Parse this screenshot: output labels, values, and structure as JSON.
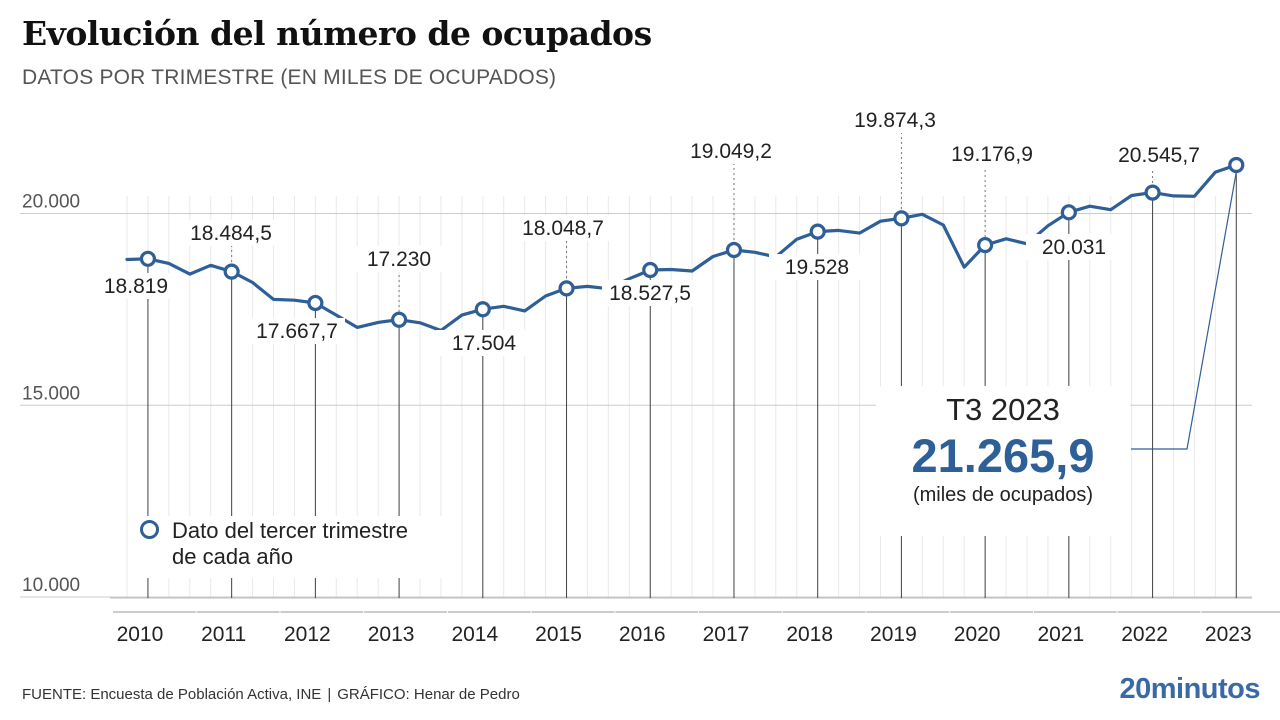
{
  "header": {
    "title": "Evolución del número de ocupados",
    "subtitle": "DATOS POR TRIMESTRE (EN MILES DE OCUPADOS)"
  },
  "legend": {
    "line1": "Dato del tercer trimestre",
    "line2": "de cada año"
  },
  "callout": {
    "label": "T3 2023",
    "value": "21.265,9",
    "unit": "(miles de ocupados)"
  },
  "footer": {
    "source": "FUENTE: Encuesta de Población Activa, INE",
    "separator": "|",
    "credit": "GRÁFICO: Henar de Pedro"
  },
  "brand": {
    "logo": "20minutos"
  },
  "colors": {
    "line": "#2f5f97",
    "grid": "#cccccc",
    "text": "#222222"
  },
  "chart_data": {
    "type": "line",
    "title": "Evolución del número de ocupados",
    "subtitle": "DATOS POR TRIMESTRE (EN MILES DE OCUPADOS)",
    "ylim": [
      10000,
      21500
    ],
    "yticks": [
      10000,
      15000,
      20000
    ],
    "ytick_labels": [
      "10.000",
      "15.000",
      "20.000"
    ],
    "years": [
      "2010",
      "2011",
      "2012",
      "2013",
      "2014",
      "2015",
      "2016",
      "2017",
      "2018",
      "2019",
      "2020",
      "2021",
      "2022",
      "2023"
    ],
    "series": [
      {
        "values": [
          18800,
          18819,
          18700,
          18420,
          18650,
          18484.5,
          18200,
          17760,
          17740,
          17667.7,
          17350,
          17030,
          17160,
          17230,
          17150,
          16950,
          17350,
          17504,
          17580,
          17460,
          17850,
          18048.7,
          18100,
          18040,
          18300,
          18527.5,
          18540,
          18500,
          18880,
          19049.2,
          18990,
          18870,
          19330,
          19528,
          19560,
          19490,
          19800,
          19874.3,
          19980,
          19700,
          18600,
          19176.9,
          19340,
          19210,
          19680,
          20031,
          20190,
          20100,
          20470,
          20545.7,
          20460,
          20450,
          21080,
          21265.9
        ]
      }
    ],
    "highlight_points": [
      {
        "year": "2010",
        "value": 18819,
        "label": "18.819"
      },
      {
        "year": "2011",
        "value": 18484.5,
        "label": "18.484,5"
      },
      {
        "year": "2012",
        "value": 17667.7,
        "label": "17.667,7"
      },
      {
        "year": "2013",
        "value": 17230,
        "label": "17.230"
      },
      {
        "year": "2014",
        "value": 17504,
        "label": "17.504"
      },
      {
        "year": "2015",
        "value": 18048.7,
        "label": "18.048,7"
      },
      {
        "year": "2016",
        "value": 18527.5,
        "label": "18.527,5"
      },
      {
        "year": "2017",
        "value": 19049.2,
        "label": "19.049,2"
      },
      {
        "year": "2018",
        "value": 19528,
        "label": "19.528"
      },
      {
        "year": "2019",
        "value": 19874.3,
        "label": "19.874,3"
      },
      {
        "year": "2020",
        "value": 19176.9,
        "label": "19.176,9"
      },
      {
        "year": "2021",
        "value": 20031,
        "label": "20.031"
      },
      {
        "year": "2022",
        "value": 20545.7,
        "label": "20.545,7"
      },
      {
        "year": "2023",
        "value": 21265.9,
        "label": ""
      }
    ],
    "grid": true
  }
}
